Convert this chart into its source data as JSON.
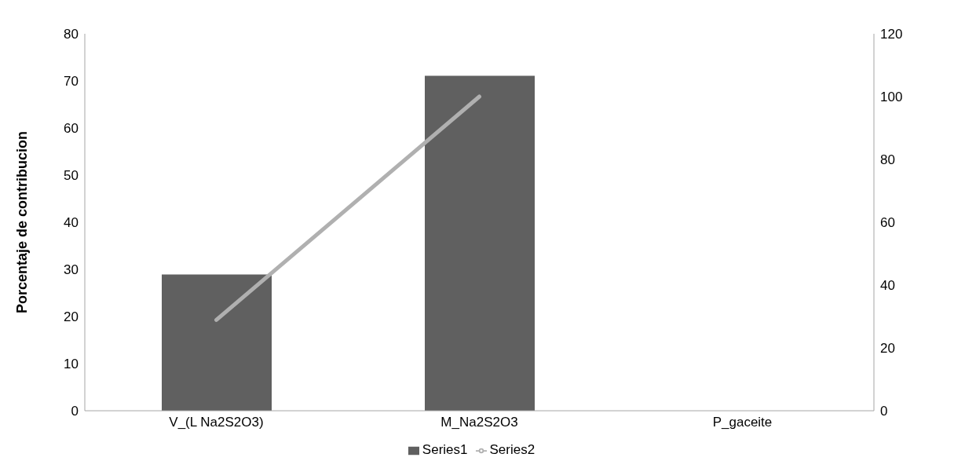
{
  "chart_data": {
    "type": "bar",
    "ylabel": "Porcentaje de contribucion",
    "categories": [
      "V_(L Na2S2O3)",
      "M_Na2S2O3",
      "P_gaceite"
    ],
    "series": [
      {
        "name": "Series1",
        "color": "#606060",
        "values": [
          28.9,
          71.1,
          0
        ]
      },
      {
        "name": "Series2",
        "type": "line",
        "axis": "y2",
        "color": "#b0b0b0",
        "values": [
          28.9,
          100,
          null
        ]
      }
    ],
    "ylim": [
      0,
      80
    ],
    "yticks": [
      0,
      10,
      20,
      30,
      40,
      50,
      60,
      70,
      80
    ],
    "y2lim": [
      0,
      120
    ],
    "y2ticks": [
      0,
      20,
      40,
      60,
      80,
      100,
      120
    ],
    "grid": false,
    "legend": "bottom",
    "marker": "none",
    "line_style": "solid"
  }
}
